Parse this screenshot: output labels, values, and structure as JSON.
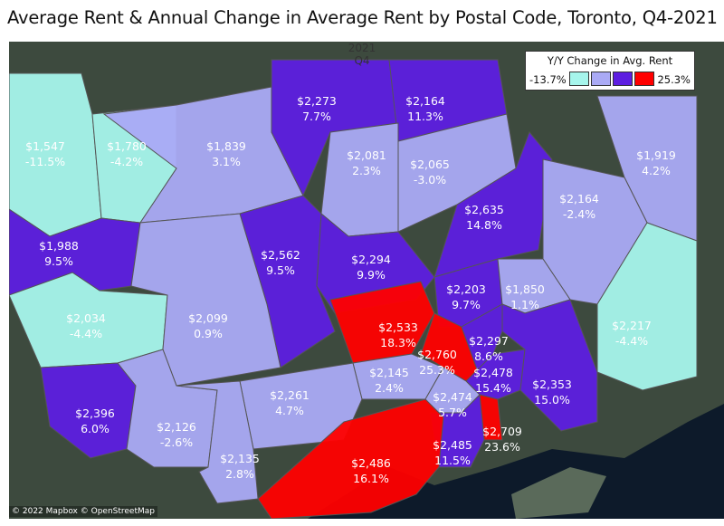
{
  "title": "Average Rent & Annual Change in Average Rent by Postal Code, Toronto, Q4-2021",
  "header": {
    "year": "2021",
    "quarter": "Q4"
  },
  "legend": {
    "title": "Y/Y Change in Avg. Rent",
    "min": "-13.7%",
    "max": "25.3%",
    "colors": [
      "#a6f5ec",
      "#aaaaf5",
      "#5d1ee0",
      "#ff0000"
    ]
  },
  "attribution": "© 2022 Mapbox © OpenStreetMap",
  "colors": {
    "teal": "#a6f5ec",
    "lavender": "#aaaaf5",
    "purple": "#5d1ee0",
    "red": "#ff0000",
    "water": "#0d1a2a",
    "land": "#3d4a3e"
  },
  "regions": [
    {
      "rent": "$1,547",
      "change": "-11.5%",
      "color": "teal"
    },
    {
      "rent": "$1,780",
      "change": "-4.2%",
      "color": "teal"
    },
    {
      "rent": "$1,839",
      "change": "3.1%",
      "color": "lavender"
    },
    {
      "rent": "$2,273",
      "change": "7.7%",
      "color": "purple"
    },
    {
      "rent": "$2,164",
      "change": "11.3%",
      "color": "purple"
    },
    {
      "rent": "$2,081",
      "change": "2.3%",
      "color": "lavender"
    },
    {
      "rent": "$2,065",
      "change": "-3.0%",
      "color": "lavender"
    },
    {
      "rent": "$1,919",
      "change": "4.2%",
      "color": "lavender"
    },
    {
      "rent": "$2,635",
      "change": "14.8%",
      "color": "purple"
    },
    {
      "rent": "$2,164",
      "change": "-2.4%",
      "color": "lavender"
    },
    {
      "rent": "$1,988",
      "change": "9.5%",
      "color": "purple"
    },
    {
      "rent": "$2,562",
      "change": "9.5%",
      "color": "purple"
    },
    {
      "rent": "$2,294",
      "change": "9.9%",
      "color": "purple"
    },
    {
      "rent": "$2,034",
      "change": "-4.4%",
      "color": "teal"
    },
    {
      "rent": "$2,099",
      "change": "0.9%",
      "color": "lavender"
    },
    {
      "rent": "$2,203",
      "change": "9.7%",
      "color": "purple"
    },
    {
      "rent": "$1,850",
      "change": "1.1%",
      "color": "lavender"
    },
    {
      "rent": "$2,533",
      "change": "18.3%",
      "color": "red"
    },
    {
      "rent": "$2,217",
      "change": "-4.4%",
      "color": "teal"
    },
    {
      "rent": "$2,760",
      "change": "25.3%",
      "color": "red"
    },
    {
      "rent": "$2,297",
      "change": "8.6%",
      "color": "purple"
    },
    {
      "rent": "$2,145",
      "change": "2.4%",
      "color": "lavender"
    },
    {
      "rent": "$2,478",
      "change": "15.4%",
      "color": "purple"
    },
    {
      "rent": "$2,353",
      "change": "15.0%",
      "color": "purple"
    },
    {
      "rent": "$2,261",
      "change": "4.7%",
      "color": "lavender"
    },
    {
      "rent": "$2,396",
      "change": "6.0%",
      "color": "purple"
    },
    {
      "rent": "$2,474",
      "change": "5.7%",
      "color": "lavender"
    },
    {
      "rent": "$2,126",
      "change": "-2.6%",
      "color": "lavender"
    },
    {
      "rent": "$2,709",
      "change": "23.6%",
      "color": "red"
    },
    {
      "rent": "$2,485",
      "change": "11.5%",
      "color": "purple"
    },
    {
      "rent": "$2,486",
      "change": "16.1%",
      "color": "red"
    },
    {
      "rent": "$2,135",
      "change": "2.8%",
      "color": "lavender"
    }
  ]
}
